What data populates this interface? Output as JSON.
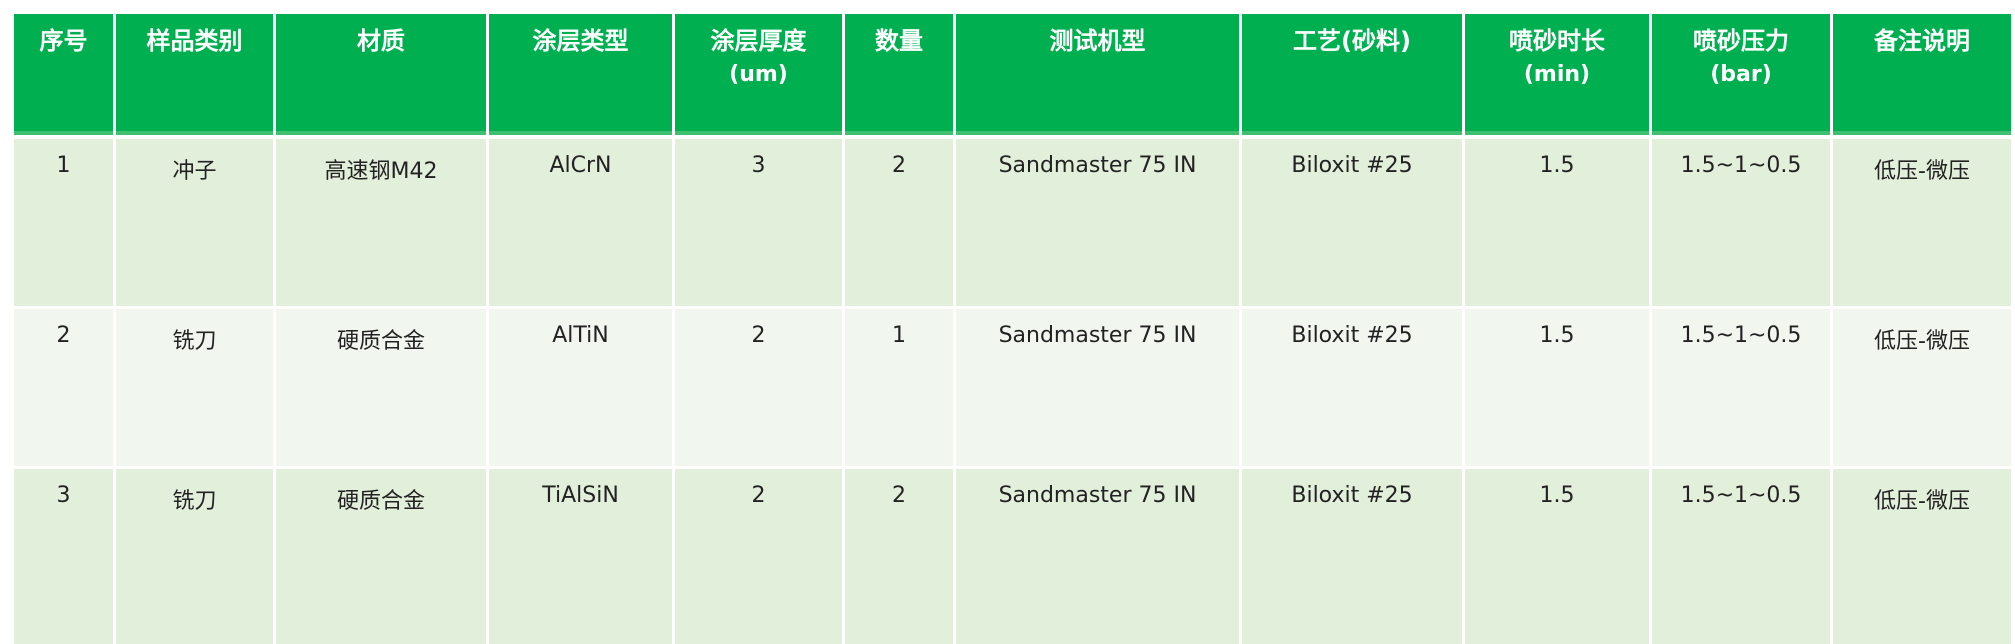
{
  "header_color": "#00b050",
  "columns": [
    {
      "label": "序号",
      "unit": ""
    },
    {
      "label": "样品类别",
      "unit": ""
    },
    {
      "label": "材质",
      "unit": ""
    },
    {
      "label": "涂层类型",
      "unit": ""
    },
    {
      "label": "涂层厚度",
      "unit": "(um)"
    },
    {
      "label": "数量",
      "unit": ""
    },
    {
      "label": "测试机型",
      "unit": ""
    },
    {
      "label": "工艺(砂料)",
      "unit": ""
    },
    {
      "label": "喷砂时长",
      "unit": "(min)"
    },
    {
      "label": "喷砂压力",
      "unit": "(bar)"
    },
    {
      "label": "备注说明",
      "unit": ""
    }
  ],
  "rows": [
    [
      "1",
      "冲子",
      "高速钢M42",
      "AlCrN",
      "3",
      "2",
      "Sandmaster 75 IN",
      "Biloxit #25",
      "1.5",
      "1.5~1~0.5",
      "低压-微压"
    ],
    [
      "2",
      "铣刀",
      "硬质合金",
      "AlTiN",
      "2",
      "1",
      "Sandmaster 75 IN",
      "Biloxit #25",
      "1.5",
      "1.5~1~0.5",
      "低压-微压"
    ],
    [
      "3",
      "铣刀",
      "硬质合金",
      "TiAlSiN",
      "2",
      "2",
      "Sandmaster 75 IN",
      "Biloxit #25",
      "1.5",
      "1.5~1~0.5",
      "低压-微压"
    ]
  ]
}
